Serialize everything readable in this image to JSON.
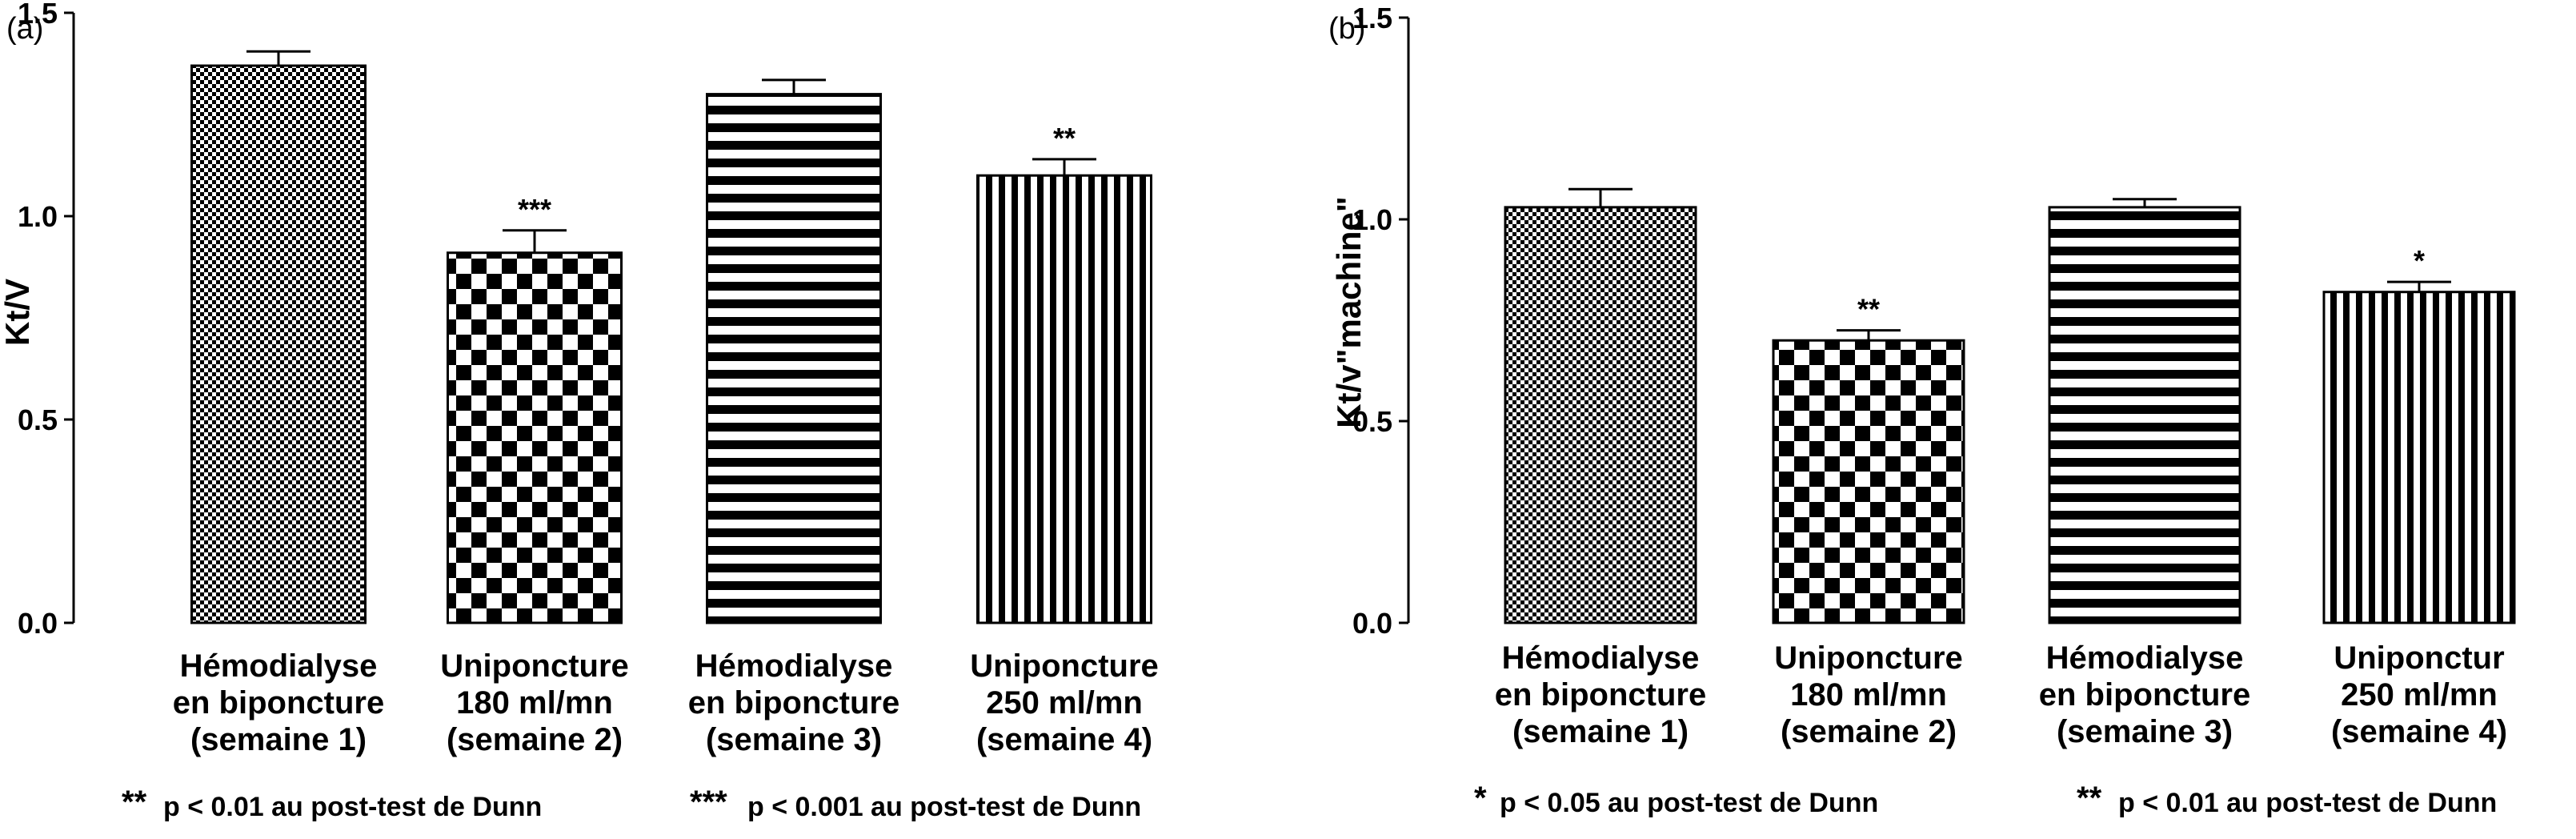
{
  "chart_data": [
    {
      "type": "bar",
      "panel_label": "(a)",
      "ylabel": "Kt/V",
      "ylim": [
        0,
        1.5
      ],
      "yticks": [
        "0.0",
        "0.5",
        "1.0",
        "1.5"
      ],
      "categories": [
        [
          "Hémodialyse",
          "en biponcture",
          "(semaine 1)"
        ],
        [
          "Uniponcture",
          "180 ml/mn",
          "(semaine 2)"
        ],
        [
          "Hémodialyse",
          "en biponcture",
          "(semaine 3)"
        ],
        [
          "Uniponcture",
          "250 ml/mn",
          "(semaine 4)"
        ]
      ],
      "values": [
        1.37,
        0.91,
        1.3,
        1.1
      ],
      "errors": [
        0.035,
        0.055,
        0.035,
        0.04
      ],
      "patterns": [
        "fine-check",
        "large-check",
        "horizontal-stripes",
        "vertical-stripes"
      ],
      "significance": [
        "",
        "***",
        "",
        "**"
      ],
      "footnotes": [
        {
          "stars": "**",
          "text": "p < 0.01 au post-test de Dunn"
        },
        {
          "stars": "***",
          "text": "p < 0.001 au post-test de Dunn"
        }
      ]
    },
    {
      "type": "bar",
      "panel_label": "(b)",
      "ylabel": "Kt/v\"machine\"",
      "ylim": [
        0,
        1.5
      ],
      "yticks": [
        "0.0",
        "0.5",
        "1.0",
        "1.5"
      ],
      "categories": [
        [
          "Hémodialyse",
          "en biponcture",
          "(semaine 1)"
        ],
        [
          "Uniponcture",
          "180 ml/mn",
          "(semaine 2)"
        ],
        [
          "Hémodialyse",
          "en biponcture",
          "(semaine 3)"
        ],
        [
          "Uniponctur",
          "250 ml/mn",
          "(semaine 4)"
        ]
      ],
      "values": [
        1.03,
        0.7,
        1.03,
        0.82
      ],
      "errors": [
        0.045,
        0.025,
        0.02,
        0.025
      ],
      "patterns": [
        "fine-check",
        "large-check",
        "horizontal-stripes",
        "vertical-stripes"
      ],
      "significance": [
        "",
        "**",
        "",
        "*"
      ],
      "footnotes": [
        {
          "stars": "*",
          "text": "p < 0.05 au post-test de Dunn"
        },
        {
          "stars": "**",
          "text": "p < 0.01 au post-test de Dunn"
        }
      ]
    }
  ]
}
